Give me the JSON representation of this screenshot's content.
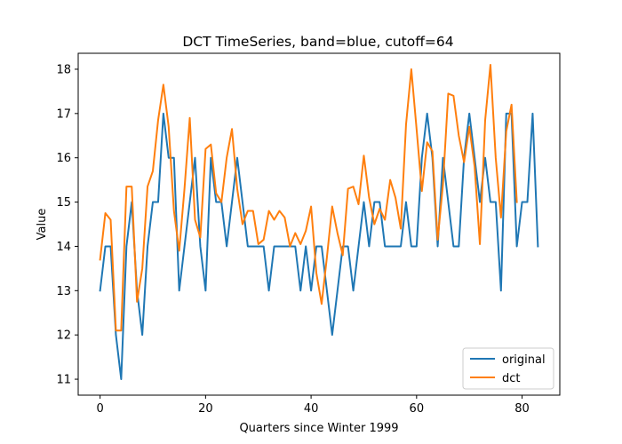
{
  "chart_data": {
    "type": "line",
    "title": "DCT TimeSeries, band=blue, cutoff=64",
    "xlabel": "Quarters since Winter 1999",
    "ylabel": "Value",
    "xlim": [
      -4.15,
      87.15
    ],
    "ylim": [
      10.64,
      18.36
    ],
    "xticks": [
      0,
      20,
      40,
      60,
      80
    ],
    "yticks": [
      11,
      12,
      13,
      14,
      15,
      16,
      17,
      18
    ],
    "legend_position": "lower-right",
    "grid": false,
    "series": [
      {
        "name": "original",
        "color": "#1f77b4",
        "x": [
          0,
          1,
          2,
          3,
          4,
          5,
          6,
          7,
          8,
          9,
          10,
          11,
          12,
          13,
          14,
          15,
          16,
          17,
          18,
          19,
          20,
          21,
          22,
          23,
          24,
          25,
          26,
          27,
          28,
          29,
          30,
          31,
          32,
          33,
          34,
          35,
          36,
          37,
          38,
          39,
          40,
          41,
          42,
          43,
          44,
          45,
          46,
          47,
          48,
          49,
          50,
          51,
          52,
          53,
          54,
          55,
          56,
          57,
          58,
          59,
          60,
          61,
          62,
          63,
          64,
          65,
          66,
          67,
          68,
          69,
          70,
          71,
          72,
          73,
          74,
          75,
          76,
          77,
          78,
          79,
          80,
          81,
          82,
          83
        ],
        "values": [
          13,
          14,
          14,
          12,
          11,
          14,
          15,
          13,
          12,
          14,
          15,
          15,
          17,
          16,
          16,
          13,
          14,
          15,
          16,
          14,
          13,
          16,
          15,
          15,
          14,
          15,
          16,
          15,
          14,
          14,
          14,
          14,
          13,
          14,
          14,
          14,
          14,
          14,
          13,
          14,
          13,
          14,
          14,
          13,
          12,
          13,
          14,
          14,
          13,
          14,
          15,
          14,
          15,
          15,
          14,
          14,
          14,
          14,
          15,
          14,
          14,
          16,
          17,
          16,
          14,
          16,
          15,
          14,
          14,
          16,
          17,
          16,
          15,
          16,
          15,
          15,
          13,
          17,
          17,
          14,
          15,
          15,
          17,
          14
        ]
      },
      {
        "name": "dct",
        "color": "#ff7f0e",
        "x": [
          0,
          1,
          2,
          3,
          4,
          5,
          6,
          7,
          8,
          9,
          10,
          11,
          12,
          13,
          14,
          15,
          16,
          17,
          18,
          19,
          20,
          21,
          22,
          23,
          24,
          25,
          26,
          27,
          28,
          29,
          30,
          31,
          32,
          33,
          34,
          35,
          36,
          37,
          38,
          39,
          40,
          41,
          42,
          43,
          44,
          45,
          46,
          47,
          48,
          49,
          50,
          51,
          52,
          53,
          54,
          55,
          56,
          57,
          58,
          59,
          60,
          61,
          62,
          63,
          64,
          65,
          66,
          67,
          68,
          69,
          70,
          71,
          72,
          73,
          74,
          75,
          76,
          77,
          78,
          79
        ],
        "values": [
          13.7,
          14.75,
          14.6,
          12.1,
          12.1,
          15.35,
          15.35,
          12.75,
          13.5,
          15.35,
          15.7,
          16.85,
          17.65,
          16.7,
          14.8,
          13.9,
          15.3,
          16.9,
          14.6,
          14.2,
          16.2,
          16.3,
          15.2,
          15.0,
          16.0,
          16.65,
          15.3,
          14.5,
          14.8,
          14.8,
          14.05,
          14.15,
          14.8,
          14.6,
          14.8,
          14.65,
          14.0,
          14.3,
          14.05,
          14.35,
          14.9,
          13.4,
          12.7,
          13.75,
          14.9,
          14.3,
          13.8,
          15.3,
          15.35,
          14.95,
          16.05,
          15.1,
          14.5,
          14.85,
          14.6,
          15.5,
          15.1,
          14.4,
          16.75,
          18.0,
          16.65,
          15.25,
          16.35,
          16.15,
          14.15,
          15.4,
          17.45,
          17.4,
          16.5,
          15.9,
          16.7,
          15.8,
          14.05,
          16.85,
          18.1,
          16.0,
          14.65,
          16.6,
          17.2,
          15.0
        ]
      }
    ]
  }
}
